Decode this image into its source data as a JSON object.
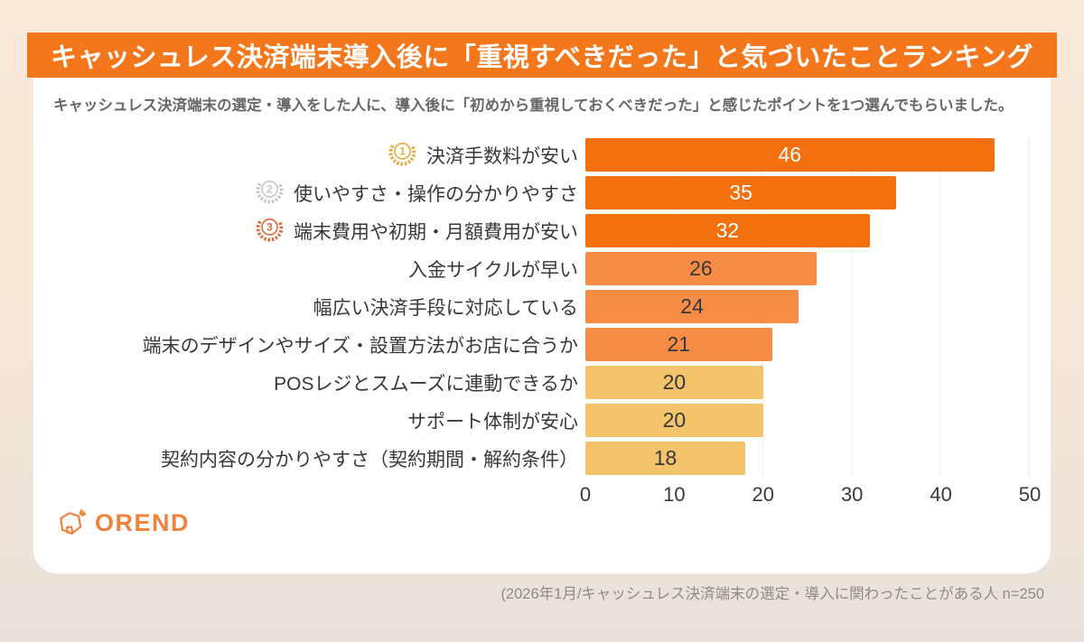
{
  "header": {
    "title": "キャッシュレス決済端末導入後に「重視すべきだった」と気づいたことランキング"
  },
  "description": {
    "text": "キャッシュレス決済端末の選定・導入をした人に、導入後に「初めから重視しておくべきだった」と感じたポイントを1つ選んでもらいました。"
  },
  "logo": {
    "text": "OREND"
  },
  "footer": {
    "note": "(2026年1月/キャッシュレス決済端末の選定・導入に関わったことがある人  n=250"
  },
  "colors": {
    "banner_bg": "#F5771C",
    "page_bg_top": "#FAE9D9",
    "page_bg_bottom": "#E8E1DB",
    "card_bg": "#FFFFFF",
    "bar_dark_orange": "#F4700E",
    "bar_mid_orange": "#F78C47",
    "bar_light_yellow": "#F4C46D",
    "gridline": "#ECECEC",
    "label_text": "#383838",
    "caption_text": "#8F8B87",
    "logo_orange": "#F0823C"
  },
  "chart_data": {
    "type": "bar",
    "orientation": "horizontal",
    "title": "キャッシュレス決済端末導入後に「重視すべきだった」と気づいたことランキング",
    "xlabel": "",
    "ylabel": "",
    "xlim": [
      0,
      50
    ],
    "xticks": [
      0,
      10,
      20,
      30,
      40,
      50
    ],
    "grid": true,
    "categories": [
      "決済手数料が安い",
      "使いやすさ・操作の分かりやすさ",
      "端末費用や初期・月額費用が安い",
      "入金サイクルが早い",
      "幅広い決済手段に対応している",
      "端末のデザインやサイズ・設置方法がお店に合うか",
      "POSレジとスムーズに連動できるか",
      "サポート体制が安心",
      "契約内容の分かりやすさ（契約期間・解約条件）"
    ],
    "values": [
      46,
      35,
      32,
      26,
      24,
      21,
      20,
      20,
      18
    ],
    "bar_colors": [
      "#F4700E",
      "#F4700E",
      "#F4700E",
      "#F78C47",
      "#F78C47",
      "#F78C47",
      "#F4C46D",
      "#F4C46D",
      "#F4C46D"
    ],
    "value_label_colors": [
      "#FFFFFF",
      "#FFFFFF",
      "#FFFFFF",
      "#383838",
      "#383838",
      "#383838",
      "#383838",
      "#383838",
      "#383838"
    ],
    "medals": [
      {
        "rank": 1,
        "color": "#E8A83E"
      },
      {
        "rank": 2,
        "color": "#C2C6CE"
      },
      {
        "rank": 3,
        "color": "#DE6A36"
      }
    ]
  }
}
